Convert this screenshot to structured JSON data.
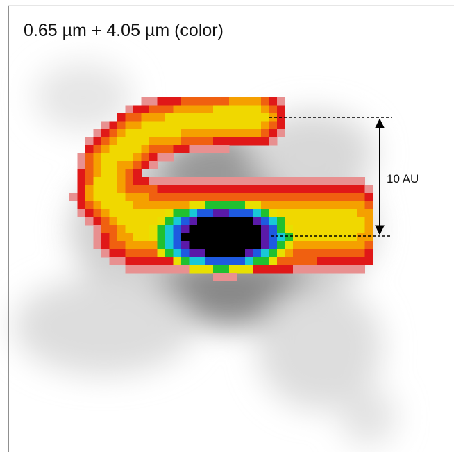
{
  "title": "0.65 µm + 4.05 µm (color)",
  "scale_bar": {
    "label": "10 AU"
  }
}
